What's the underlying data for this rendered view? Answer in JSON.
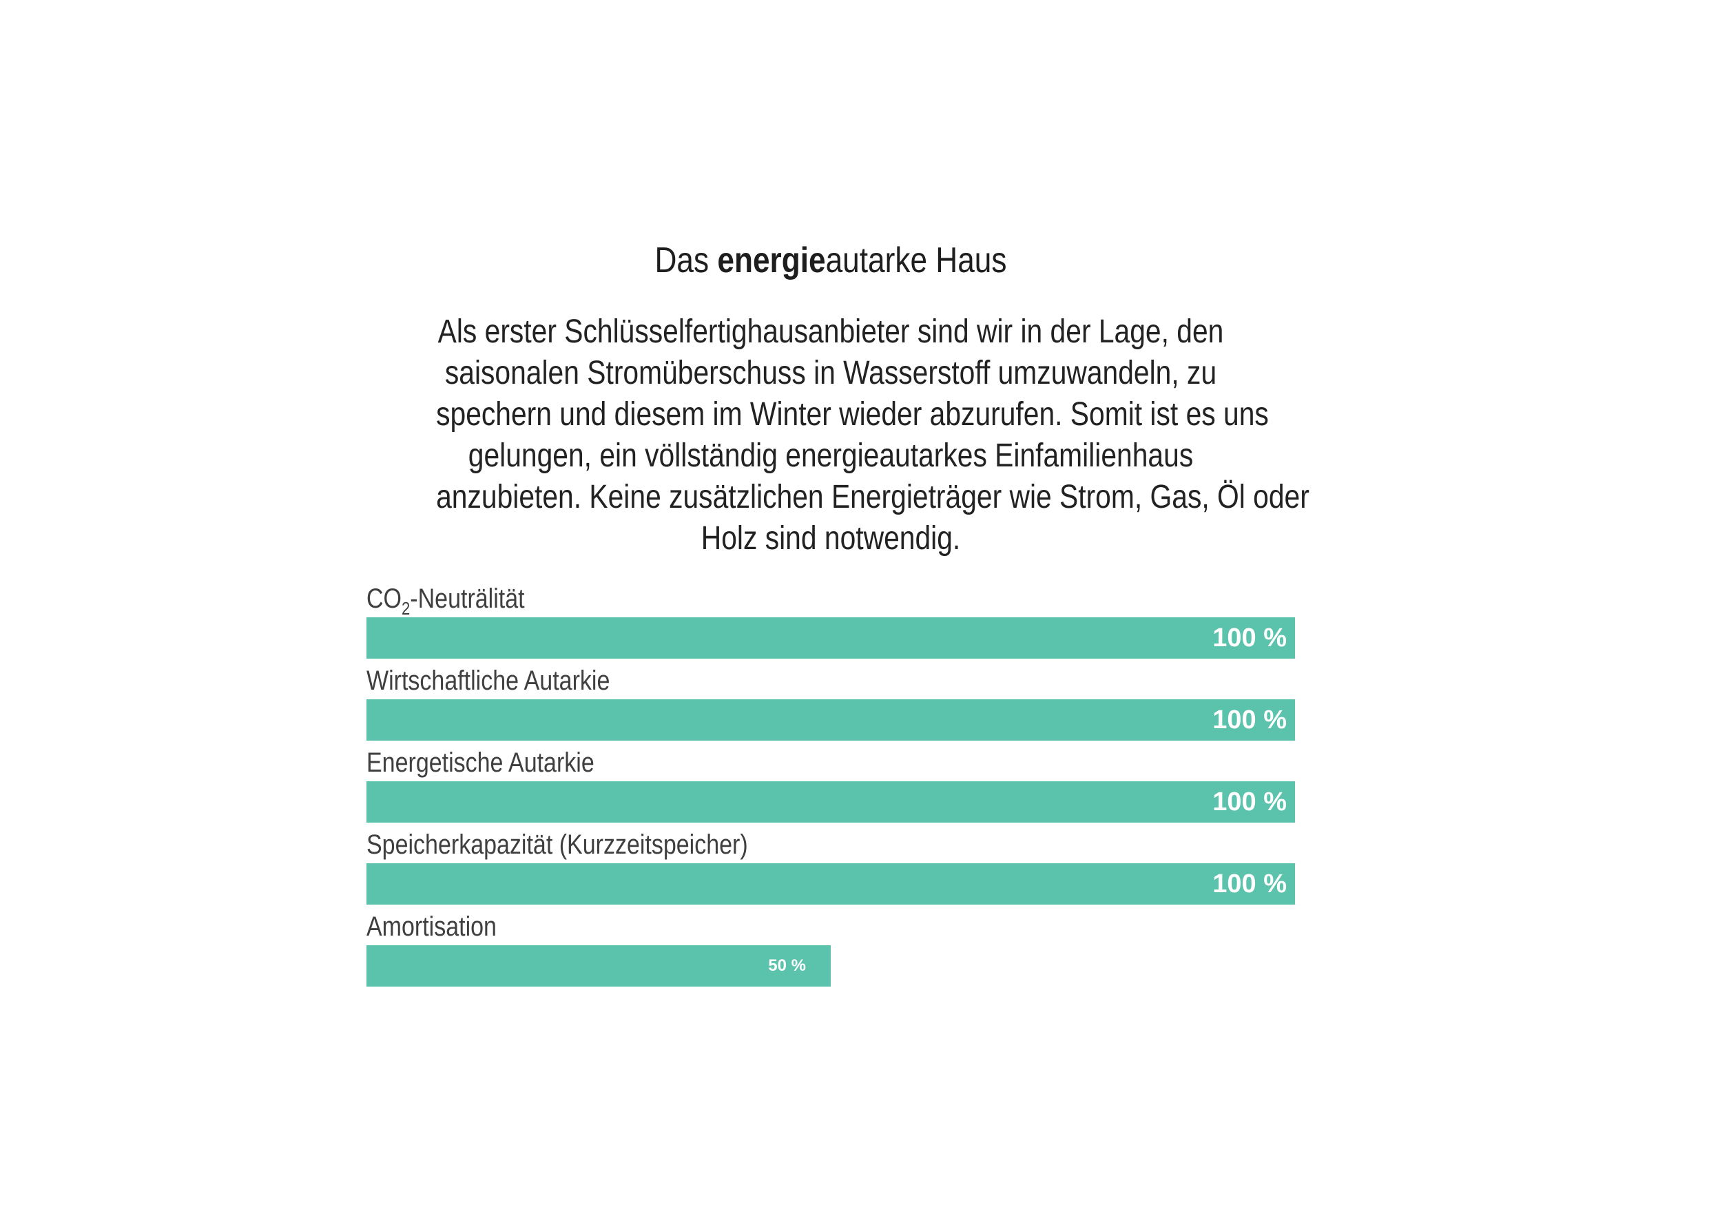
{
  "title": {
    "prefix": "Das ",
    "highlight": "energie",
    "suffix": "autarke Haus"
  },
  "paragraph": {
    "lines": [
      "Als erster Schlüsselfertighausanbieter sind wir in der Lage, den",
      "saisonalen Stromüberschuss in Wasserstoff umzuwandeln, zu",
      "spechern und diesem im Winter wieder abzurufen. Somit ist es uns",
      "gelungen, ein völlständig energieautarkes Einfamilienhaus",
      "anzubieten. Keine zusätzlichen Energieträger wie Strom, Gas, Öl oder",
      "Holz sind notwendig."
    ]
  },
  "chart_data": {
    "type": "bar",
    "orientation": "horizontal",
    "title": "Das energieautarke Haus",
    "categories": [
      "CO2-Neuträlität",
      "Wirtschaftliche Autarkie",
      "Energetische Autarkie",
      "Speicherkapazität (Kurzzeitspeicher)",
      "Amortisation"
    ],
    "values": [
      100,
      100,
      100,
      100,
      50
    ],
    "xlim": [
      0,
      100
    ],
    "grid": false,
    "legend": false,
    "bar_color": "#5bc2ac",
    "value_label_color": "#ffffff",
    "rows": [
      {
        "label_pre": "CO",
        "label_sub": "2",
        "label_post": "-Neuträlität",
        "value": 100,
        "value_label": "100 %"
      },
      {
        "label": "Wirtschaftliche Autarkie",
        "value": 100,
        "value_label": "100 %"
      },
      {
        "label": "Energetische Autarkie",
        "value": 100,
        "value_label": "100 %"
      },
      {
        "label": "Speicherkapazität (Kurzzeitspeicher)",
        "value": 100,
        "value_label": "100 %"
      },
      {
        "label": "Amortisation",
        "value": 50,
        "value_label": "50 %"
      }
    ]
  },
  "colors": {
    "background": "#ffffff",
    "bar": "#5bc2ac",
    "title_text": "#1e1e1e",
    "body_text": "#222222",
    "label_text": "#3f3f3f",
    "value_text": "#ffffff"
  }
}
